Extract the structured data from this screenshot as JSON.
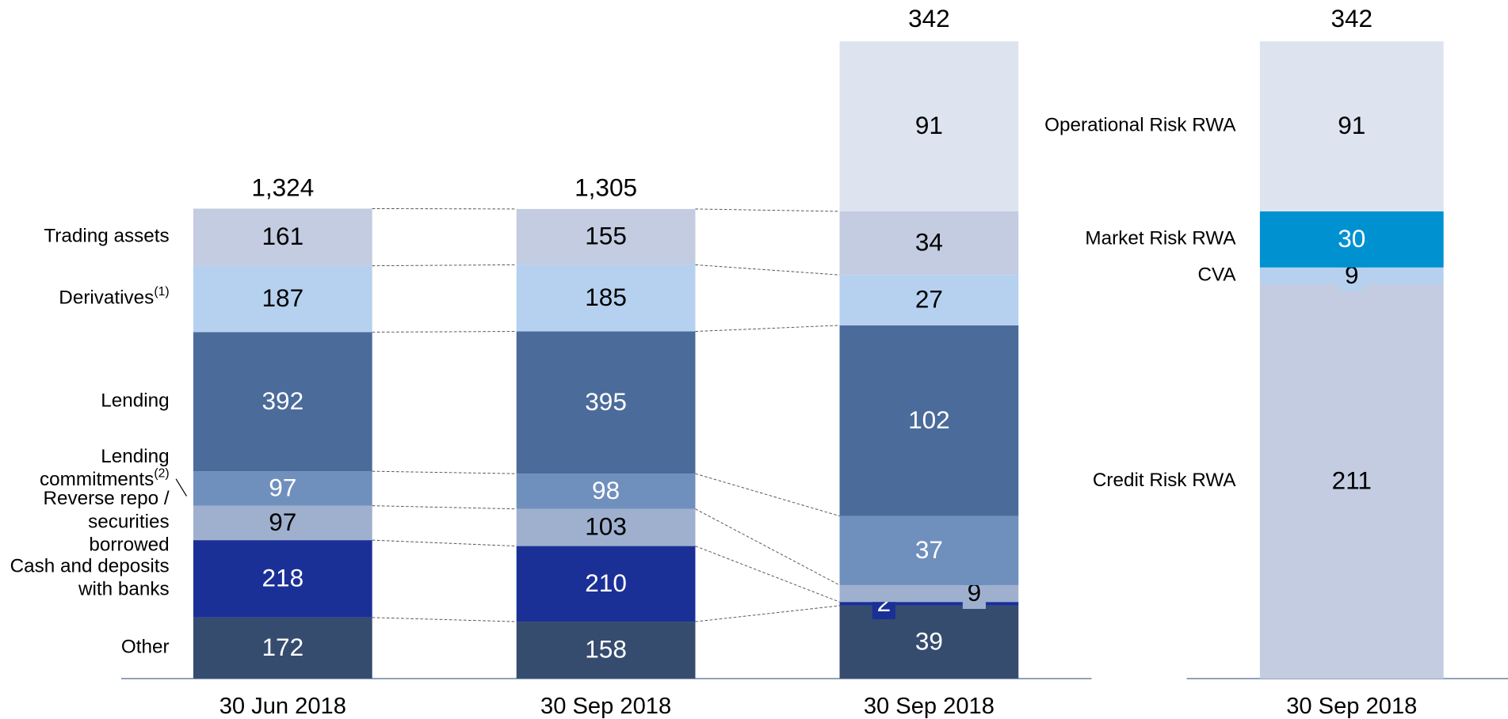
{
  "chart_data": [
    {
      "type": "stacked_bar",
      "categories": [
        "30 Jun 2018",
        "30 Sep 2018",
        "30 Sep 2018"
      ],
      "totals": [
        1324,
        1305,
        342
      ],
      "total_labels": [
        "1,324",
        "1,305",
        "342"
      ],
      "series": [
        {
          "name": [
            "Other"
          ],
          "color": "#364c6e",
          "values": [
            172,
            158,
            39
          ]
        },
        {
          "name": [
            "Cash and deposits",
            "with banks"
          ],
          "color": "#1a3096",
          "values": [
            218,
            210,
            2
          ]
        },
        {
          "name": [
            "Reverse repo /",
            "securities",
            "borrowed"
          ],
          "color": "#9fb0cf",
          "values": [
            97,
            103,
            9
          ]
        },
        {
          "name": [
            "Lending",
            "commitments"
          ],
          "note": "(2)",
          "color": "#6f8fbd",
          "values": [
            97,
            98,
            37
          ]
        },
        {
          "name": [
            "Lending"
          ],
          "color": "#4b6b9a",
          "values": [
            392,
            395,
            102
          ]
        },
        {
          "name": [
            "Derivatives"
          ],
          "note": "(1)",
          "color": "#b5d1ef",
          "values": [
            187,
            185,
            27
          ]
        },
        {
          "name": [
            "Trading assets"
          ],
          "color": "#c3cce0",
          "values": [
            161,
            155,
            34
          ]
        },
        {
          "color": "#dde4ef",
          "values": [
            null,
            null,
            91
          ]
        }
      ]
    },
    {
      "type": "stacked_bar",
      "categories": [
        "30 Sep 2018"
      ],
      "totals": [
        342
      ],
      "series": [
        {
          "name": [
            "Credit Risk RWA"
          ],
          "color": "#c3cce0",
          "values": [
            211
          ]
        },
        {
          "name": [
            "CVA"
          ],
          "color": "#b5d1ef",
          "values": [
            9
          ]
        },
        {
          "name": [
            "Market Risk RWA"
          ],
          "color": "#0092d0",
          "values": [
            30
          ]
        },
        {
          "name": [
            "Operational Risk RWA"
          ],
          "color": "#dde4ef",
          "values": [
            91
          ]
        }
      ]
    }
  ]
}
